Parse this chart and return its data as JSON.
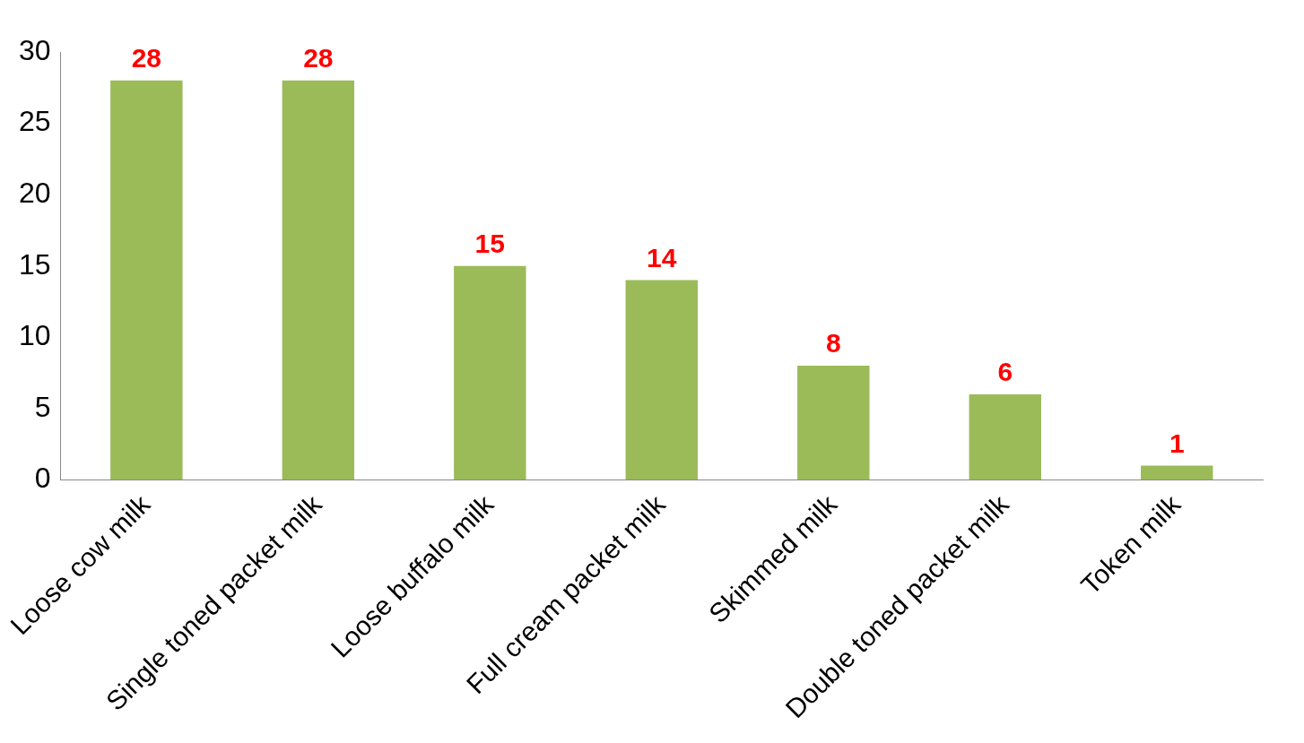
{
  "chart_data": {
    "type": "bar",
    "categories": [
      "Loose cow milk",
      "Single toned packet milk",
      "Loose buffalo milk",
      "Full cream packet milk",
      "Skimmed milk",
      "Double toned packet milk",
      "Token milk"
    ],
    "values": [
      28,
      28,
      15,
      14,
      8,
      6,
      1
    ],
    "color": "#9bbb59",
    "ylim": [
      0,
      30
    ],
    "yticks": [
      0,
      5,
      10,
      15,
      20,
      25,
      30
    ],
    "grid": false,
    "legend": false,
    "data_labels": true
  }
}
